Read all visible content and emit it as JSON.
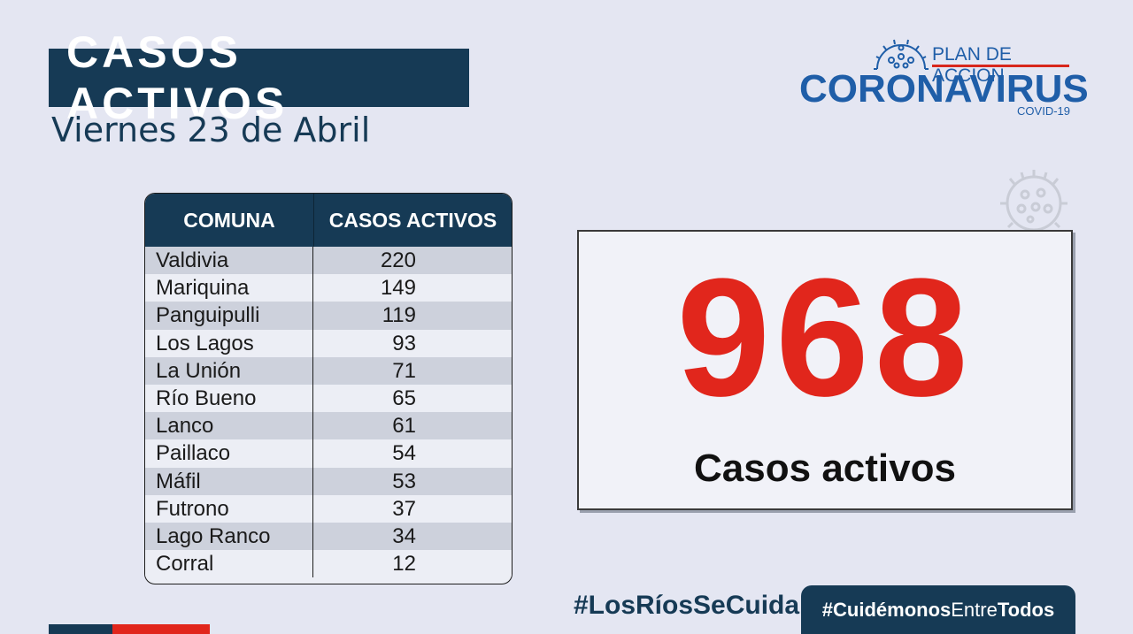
{
  "header": {
    "title": "CASOS ACTIVOS",
    "date": "Viernes 23 de Abril"
  },
  "logo": {
    "plan": "PLAN DE ACCIÓN",
    "name": "CORONAVIRUS",
    "sub": "COVID-19"
  },
  "table": {
    "headers": [
      "COMUNA",
      "CASOS ACTIVOS"
    ],
    "rows": [
      {
        "comuna": "Valdivia",
        "casos": "220"
      },
      {
        "comuna": "Mariquina",
        "casos": "149"
      },
      {
        "comuna": "Panguipulli",
        "casos": "119"
      },
      {
        "comuna": "Los Lagos",
        "casos": "93"
      },
      {
        "comuna": "La Unión",
        "casos": "71"
      },
      {
        "comuna": "Río Bueno",
        "casos": "65"
      },
      {
        "comuna": "Lanco",
        "casos": "61"
      },
      {
        "comuna": "Paillaco",
        "casos": "54"
      },
      {
        "comuna": "Máfil",
        "casos": "53"
      },
      {
        "comuna": "Futrono",
        "casos": "37"
      },
      {
        "comuna": "Lago Ranco",
        "casos": "34"
      },
      {
        "comuna": "Corral",
        "casos": "12"
      }
    ]
  },
  "total": {
    "value": "968",
    "label": "Casos activos"
  },
  "footer": {
    "hashtag1": "#LosRíosSeCuida",
    "hashtag2_a": "#Cuidémonos",
    "hashtag2_b": "Entre",
    "hashtag2_c": "Todos"
  },
  "colors": {
    "navy": "#163a55",
    "red": "#e1261c",
    "logo_blue": "#1f5ea8"
  }
}
